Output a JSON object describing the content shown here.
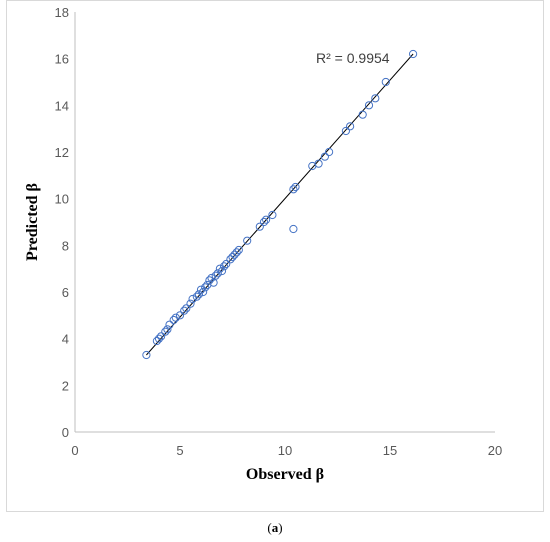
{
  "chart_data": {
    "type": "scatter",
    "title": "",
    "xlabel": "Observed β",
    "ylabel": "Predicted β",
    "xlim": [
      0,
      20
    ],
    "ylim": [
      0,
      18
    ],
    "xticks": [
      "0",
      "5",
      "10",
      "15",
      "20"
    ],
    "yticks": [
      "0",
      "2",
      "4",
      "6",
      "8",
      "10",
      "12",
      "14",
      "16",
      "18"
    ],
    "grid": false,
    "legend": "none",
    "marker_color": "#4472c4",
    "trendline": {
      "type": "linear",
      "from": [
        3.4,
        3.3
      ],
      "to": [
        16.1,
        16.2
      ],
      "color": "#000000"
    },
    "annotation": "R² = 0.9954",
    "points": [
      [
        3.4,
        3.3
      ],
      [
        3.9,
        3.9
      ],
      [
        4.0,
        4.0
      ],
      [
        4.1,
        4.1
      ],
      [
        4.3,
        4.3
      ],
      [
        4.4,
        4.4
      ],
      [
        4.5,
        4.6
      ],
      [
        4.7,
        4.8
      ],
      [
        4.8,
        4.9
      ],
      [
        5.0,
        5.0
      ],
      [
        5.2,
        5.2
      ],
      [
        5.3,
        5.3
      ],
      [
        5.5,
        5.5
      ],
      [
        5.6,
        5.7
      ],
      [
        5.8,
        5.8
      ],
      [
        5.9,
        5.9
      ],
      [
        6.0,
        6.1
      ],
      [
        6.1,
        6.0
      ],
      [
        6.2,
        6.2
      ],
      [
        6.3,
        6.3
      ],
      [
        6.4,
        6.5
      ],
      [
        6.5,
        6.6
      ],
      [
        6.6,
        6.4
      ],
      [
        6.7,
        6.7
      ],
      [
        6.8,
        6.8
      ],
      [
        6.9,
        7.0
      ],
      [
        7.0,
        6.9
      ],
      [
        7.1,
        7.1
      ],
      [
        7.2,
        7.2
      ],
      [
        7.4,
        7.4
      ],
      [
        7.5,
        7.5
      ],
      [
        7.6,
        7.6
      ],
      [
        7.7,
        7.7
      ],
      [
        7.8,
        7.8
      ],
      [
        8.2,
        8.2
      ],
      [
        8.8,
        8.8
      ],
      [
        9.0,
        9.0
      ],
      [
        9.1,
        9.1
      ],
      [
        9.4,
        9.3
      ],
      [
        10.4,
        10.4
      ],
      [
        10.5,
        10.5
      ],
      [
        10.4,
        8.7
      ],
      [
        11.3,
        11.4
      ],
      [
        11.6,
        11.5
      ],
      [
        11.9,
        11.8
      ],
      [
        12.1,
        12.0
      ],
      [
        12.9,
        12.9
      ],
      [
        13.1,
        13.1
      ],
      [
        13.7,
        13.6
      ],
      [
        14.0,
        14.0
      ],
      [
        14.3,
        14.3
      ],
      [
        14.8,
        15.0
      ],
      [
        16.1,
        16.2
      ]
    ]
  },
  "caption": {
    "open": "(",
    "label": "a",
    "close": ")"
  }
}
